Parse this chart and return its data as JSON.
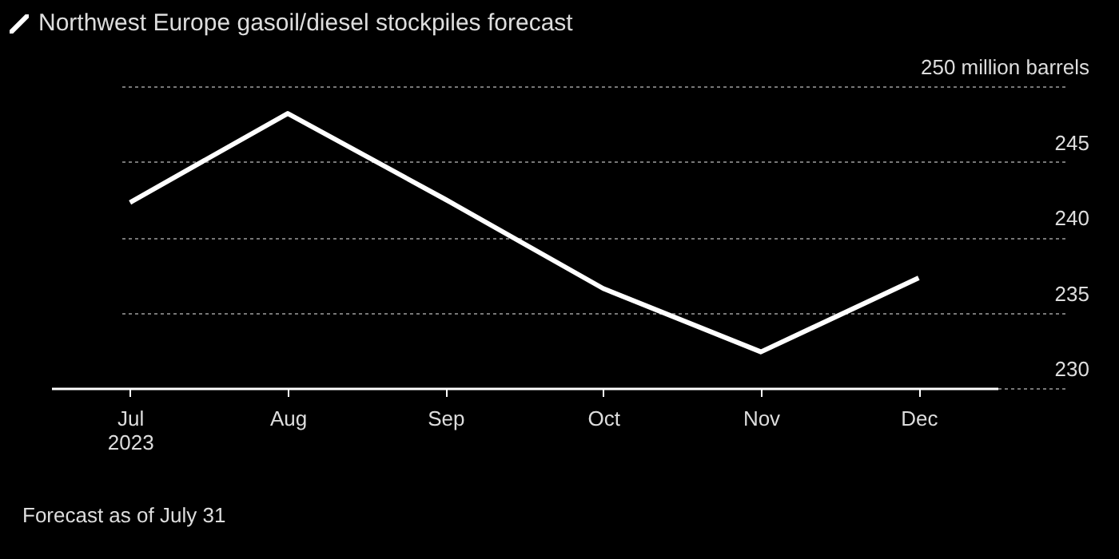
{
  "chart_data": {
    "type": "line",
    "title": "Northwest Europe gasoil/diesel stockpiles forecast",
    "annotations": [
      "Forecast as of July 31"
    ],
    "categories": [
      "Jul\n2023",
      "Aug",
      "Sep",
      "Oct",
      "Nov",
      "Dec"
    ],
    "series": [
      {
        "color": "#ffffff",
        "values": [
          242.3,
          248.2,
          242.5,
          236.6,
          232.4,
          237.3
        ]
      }
    ],
    "ylim": [
      230,
      250
    ],
    "yticks": [
      230,
      235,
      240,
      245,
      {
        "value": 250,
        "label": "250 million barrels"
      }
    ],
    "grid": "y",
    "marker": "none",
    "line_style": "solid"
  }
}
